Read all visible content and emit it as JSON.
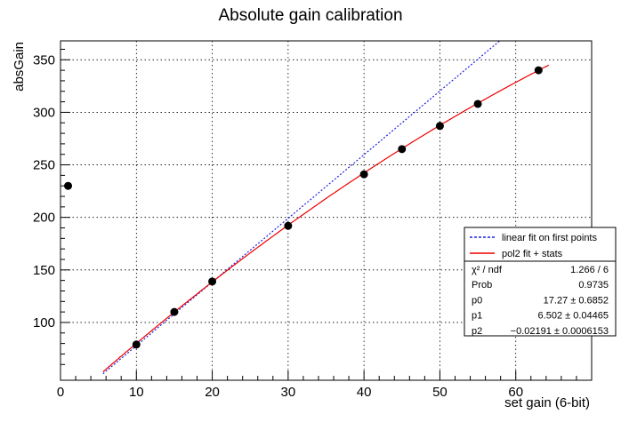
{
  "chart_data": {
    "type": "scatter",
    "title": "Absolute gain calibration",
    "xlabel": "set gain (6-bit)",
    "ylabel": "absGain",
    "xlim": [
      0,
      70
    ],
    "ylim": [
      45,
      368
    ],
    "xticks": [
      0,
      10,
      20,
      30,
      40,
      50,
      60
    ],
    "yticks": [
      100,
      150,
      200,
      250,
      300,
      350
    ],
    "grid": true,
    "points": [
      {
        "x": 1,
        "y": 230
      },
      {
        "x": 10,
        "y": 79
      },
      {
        "x": 15,
        "y": 110
      },
      {
        "x": 20,
        "y": 139
      },
      {
        "x": 30,
        "y": 192
      },
      {
        "x": 40,
        "y": 241
      },
      {
        "x": 45,
        "y": 265
      },
      {
        "x": 50,
        "y": 287
      },
      {
        "x": 55,
        "y": 308
      },
      {
        "x": 63,
        "y": 340
      }
    ],
    "series": [
      {
        "name": "linear fit on first points",
        "kind": "linear",
        "color": "#2020dd",
        "dash": true,
        "intercept": 17.27,
        "slope": 6.06,
        "x_range": [
          5.6,
          58.7
        ]
      },
      {
        "name": "pol2 fit + stats",
        "kind": "pol2",
        "color": "#ee0000",
        "dash": false,
        "p0": 17.27,
        "p1": 6.502,
        "p2": -0.02191,
        "x_range": [
          5.6,
          64.5
        ]
      }
    ],
    "legend": {
      "placement": "bottom-right",
      "entries": [
        "linear fit on first points",
        "pol2 fit + stats"
      ]
    },
    "stats": [
      {
        "label": "χ² / ndf",
        "value": "1.266 / 6"
      },
      {
        "label": "Prob",
        "value": "0.9735"
      },
      {
        "label": "p0",
        "value": "17.27 ± 0.6852"
      },
      {
        "label": "p1",
        "value": "6.502 ± 0.04465"
      },
      {
        "label": "p2",
        "value": "−0.02191 ± 0.0006153"
      }
    ]
  }
}
